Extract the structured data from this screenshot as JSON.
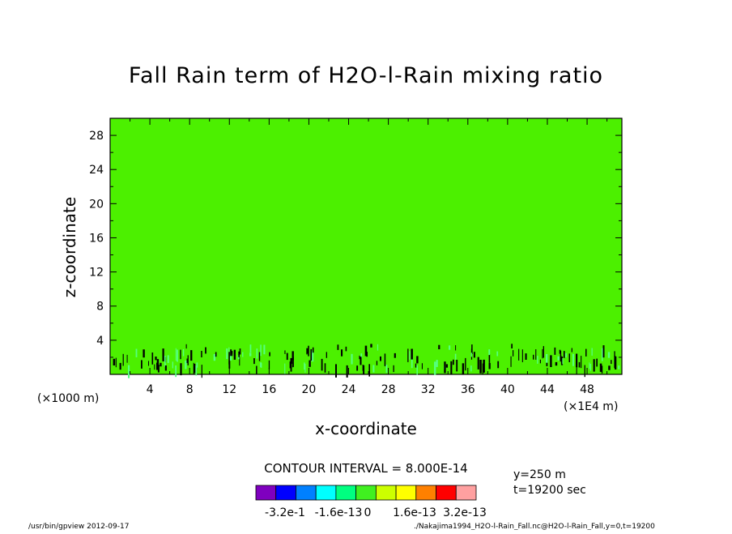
{
  "chart_data": {
    "type": "heatmap",
    "title": "Fall Rain term of H2O-l-Rain mixing ratio",
    "xlabel": "x-coordinate",
    "ylabel": "z-coordinate",
    "xlim": [
      0,
      51.5
    ],
    "ylim": [
      0,
      30
    ],
    "x_ticks": [
      "4",
      "8",
      "12",
      "16",
      "20",
      "24",
      "28",
      "32",
      "36",
      "40",
      "44",
      "48"
    ],
    "y_ticks": [
      "4",
      "8",
      "12",
      "16",
      "20",
      "24",
      "28"
    ],
    "x_unit_left": "(×1000 m)",
    "x_unit_right": "(×1E4 m)",
    "background_value": 0,
    "background_color": "#4cf000",
    "contour_interval_text": "CONTOUR INTERVAL = 8.000E-14",
    "colorbar": {
      "colors": [
        "#7f00bf",
        "#0000ff",
        "#0080ff",
        "#00ffff",
        "#00ff80",
        "#40f020",
        "#ccff00",
        "#ffff00",
        "#ff8000",
        "#ff0000",
        "#ffa0a0"
      ],
      "labels": [
        "-3.2e-1",
        "-1.6e-13",
        "0",
        "1.6e-13",
        "3.2e-13"
      ]
    },
    "info": [
      "y=250 m",
      "t=19200 sec"
    ],
    "footer_left": "/usr/bin/gpview  2012-09-17",
    "footer_right": "./Nakajima1994_H2O-l-Rain_Fall.nc@H2O-l-Rain_Fall,y=0,t=19200"
  }
}
